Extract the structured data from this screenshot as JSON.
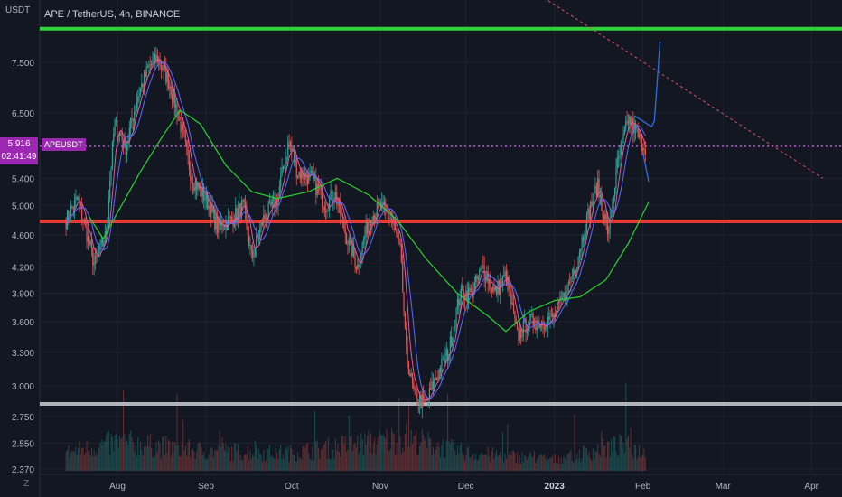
{
  "header": {
    "title": "APE / TetherUS, 4h, BINANCE",
    "unit_label": "USDT",
    "z_button": "Z"
  },
  "price_tag": {
    "symbol": "APEUSDT",
    "price": "5.916",
    "countdown": "02:41:49"
  },
  "colors": {
    "background": "#131722",
    "resistance_line": "#2fd33c",
    "support_red": "#e53935",
    "support_gray": "#b0b3b8",
    "current_price_line": "#c04ddc",
    "trend_line": "#e0516a",
    "ma_green": "#29d12f",
    "projection": "#2f6fe0",
    "up_candle": "#26a69a",
    "down_candle": "#ef5350"
  },
  "chart_data": {
    "type": "candlestick",
    "title": "APE / TetherUS, 4h, BINANCE",
    "ylabel": "USDT",
    "y_scale": "log",
    "ylim": [
      2.33,
      8.75
    ],
    "y_ticks": [
      "7.500",
      "6.500",
      "5.900",
      "5.400",
      "5.000",
      "4.600",
      "4.200",
      "3.900",
      "3.600",
      "3.300",
      "3.000",
      "2.750",
      "2.550",
      "2.370"
    ],
    "x_ticks": [
      "Aug",
      "Sep",
      "Oct",
      "Nov",
      "Dec",
      "2023",
      "Feb",
      "Mar",
      "Apr"
    ],
    "price_path": [
      {
        "date": "Jul 14",
        "price": 4.8
      },
      {
        "date": "Jul 18",
        "price": 5.1
      },
      {
        "date": "Jul 22",
        "price": 4.5
      },
      {
        "date": "Jul 24",
        "price": 4.22
      },
      {
        "date": "Jul 28",
        "price": 4.6
      },
      {
        "date": "Jul 31",
        "price": 6.3
      },
      {
        "date": "Aug 4",
        "price": 5.9
      },
      {
        "date": "Aug 8",
        "price": 6.8
      },
      {
        "date": "Aug 12",
        "price": 7.4
      },
      {
        "date": "Aug 15",
        "price": 7.6
      },
      {
        "date": "Aug 19",
        "price": 7.1
      },
      {
        "date": "Aug 23",
        "price": 6.3
      },
      {
        "date": "Aug 27",
        "price": 5.4
      },
      {
        "date": "Sep 1",
        "price": 5.1
      },
      {
        "date": "Sep 5",
        "price": 4.7
      },
      {
        "date": "Sep 10",
        "price": 4.8
      },
      {
        "date": "Sep 14",
        "price": 5.0
      },
      {
        "date": "Sep 17",
        "price": 4.3
      },
      {
        "date": "Sep 21",
        "price": 4.8
      },
      {
        "date": "Sep 26",
        "price": 5.1
      },
      {
        "date": "Sep 30",
        "price": 6.0
      },
      {
        "date": "Oct 3",
        "price": 5.5
      },
      {
        "date": "Oct 8",
        "price": 5.4
      },
      {
        "date": "Oct 13",
        "price": 5.0
      },
      {
        "date": "Oct 16",
        "price": 5.2
      },
      {
        "date": "Oct 20",
        "price": 4.6
      },
      {
        "date": "Oct 24",
        "price": 4.2
      },
      {
        "date": "Oct 28",
        "price": 4.8
      },
      {
        "date": "Nov 1",
        "price": 5.0
      },
      {
        "date": "Nov 5",
        "price": 4.8
      },
      {
        "date": "Nov 8",
        "price": 4.4
      },
      {
        "date": "Nov 10",
        "price": 3.3
      },
      {
        "date": "Nov 13",
        "price": 2.9
      },
      {
        "date": "Nov 17",
        "price": 2.85
      },
      {
        "date": "Nov 21",
        "price": 3.1
      },
      {
        "date": "Nov 25",
        "price": 3.3
      },
      {
        "date": "Nov 29",
        "price": 3.9
      },
      {
        "date": "Dec 3",
        "price": 3.9
      },
      {
        "date": "Dec 7",
        "price": 4.2
      },
      {
        "date": "Dec 11",
        "price": 3.9
      },
      {
        "date": "Dec 15",
        "price": 4.1
      },
      {
        "date": "Dec 19",
        "price": 3.45
      },
      {
        "date": "Dec 23",
        "price": 3.6
      },
      {
        "date": "Dec 28",
        "price": 3.6
      },
      {
        "date": "Jan 1",
        "price": 3.65
      },
      {
        "date": "Jan 5",
        "price": 3.9
      },
      {
        "date": "Jan 9",
        "price": 4.3
      },
      {
        "date": "Jan 13",
        "price": 4.9
      },
      {
        "date": "Jan 16",
        "price": 5.3
      },
      {
        "date": "Jan 20",
        "price": 4.6
      },
      {
        "date": "Jan 23",
        "price": 5.6
      },
      {
        "date": "Jan 27",
        "price": 6.4
      },
      {
        "date": "Jan 31",
        "price": 6.0
      },
      {
        "date": "Feb 2",
        "price": 5.916
      }
    ],
    "ema_path": [
      {
        "date": "Jul 22",
        "price": 4.85
      },
      {
        "date": "Jul 27",
        "price": 4.55
      },
      {
        "date": "Aug 1",
        "price": 4.9
      },
      {
        "date": "Aug 9",
        "price": 5.5
      },
      {
        "date": "Aug 17",
        "price": 6.1
      },
      {
        "date": "Aug 23",
        "price": 6.55
      },
      {
        "date": "Aug 30",
        "price": 6.3
      },
      {
        "date": "Sep 8",
        "price": 5.6
      },
      {
        "date": "Sep 17",
        "price": 5.2
      },
      {
        "date": "Sep 26",
        "price": 5.1
      },
      {
        "date": "Oct 7",
        "price": 5.2
      },
      {
        "date": "Oct 17",
        "price": 5.4
      },
      {
        "date": "Oct 28",
        "price": 5.15
      },
      {
        "date": "Nov 7",
        "price": 4.8
      },
      {
        "date": "Nov 17",
        "price": 4.3
      },
      {
        "date": "Nov 28",
        "price": 3.9
      },
      {
        "date": "Dec 9",
        "price": 3.65
      },
      {
        "date": "Dec 15",
        "price": 3.5
      },
      {
        "date": "Dec 23",
        "price": 3.7
      },
      {
        "date": "Jan 1",
        "price": 3.82
      },
      {
        "date": "Jan 10",
        "price": 3.86
      },
      {
        "date": "Jan 19",
        "price": 4.05
      },
      {
        "date": "Jan 27",
        "price": 4.5
      },
      {
        "date": "Feb 3",
        "price": 5.05
      }
    ],
    "horizontal_levels": [
      {
        "price": 8.25,
        "color": "#2fd33c"
      },
      {
        "price": 4.78,
        "color": "#e53935"
      },
      {
        "price": 2.85,
        "color": "#b0b3b8"
      },
      {
        "price": 5.916,
        "color": "#c04ddc",
        "style": "dotted"
      }
    ],
    "trend_line": [
      {
        "date": "Nov 20",
        "price": 11.0
      },
      {
        "date": "Apr 5",
        "price": 5.4
      }
    ],
    "projection_paths": [
      [
        {
          "date": "Jan 29",
          "price": 6.45
        },
        {
          "date": "Feb 4",
          "price": 6.25
        },
        {
          "date": "Feb 5",
          "price": 6.35
        },
        {
          "date": "Feb 7",
          "price": 7.95
        }
      ],
      [
        {
          "date": "Feb 1",
          "price": 5.8
        },
        {
          "date": "Feb 3",
          "price": 5.35
        }
      ]
    ],
    "volume_path": [
      {
        "date": "Jul 14",
        "value": 22
      },
      {
        "date": "Aug 1",
        "value": 35
      },
      {
        "date": "Aug 15",
        "value": 30
      },
      {
        "date": "Sep 1",
        "value": 24
      },
      {
        "date": "Oct 1",
        "value": 22
      },
      {
        "date": "Nov 10",
        "value": 40
      },
      {
        "date": "Dec 1",
        "value": 22
      },
      {
        "date": "Jan 1",
        "value": 14
      },
      {
        "date": "Jan 25",
        "value": 32
      },
      {
        "date": "Feb 3",
        "value": 20
      }
    ]
  }
}
